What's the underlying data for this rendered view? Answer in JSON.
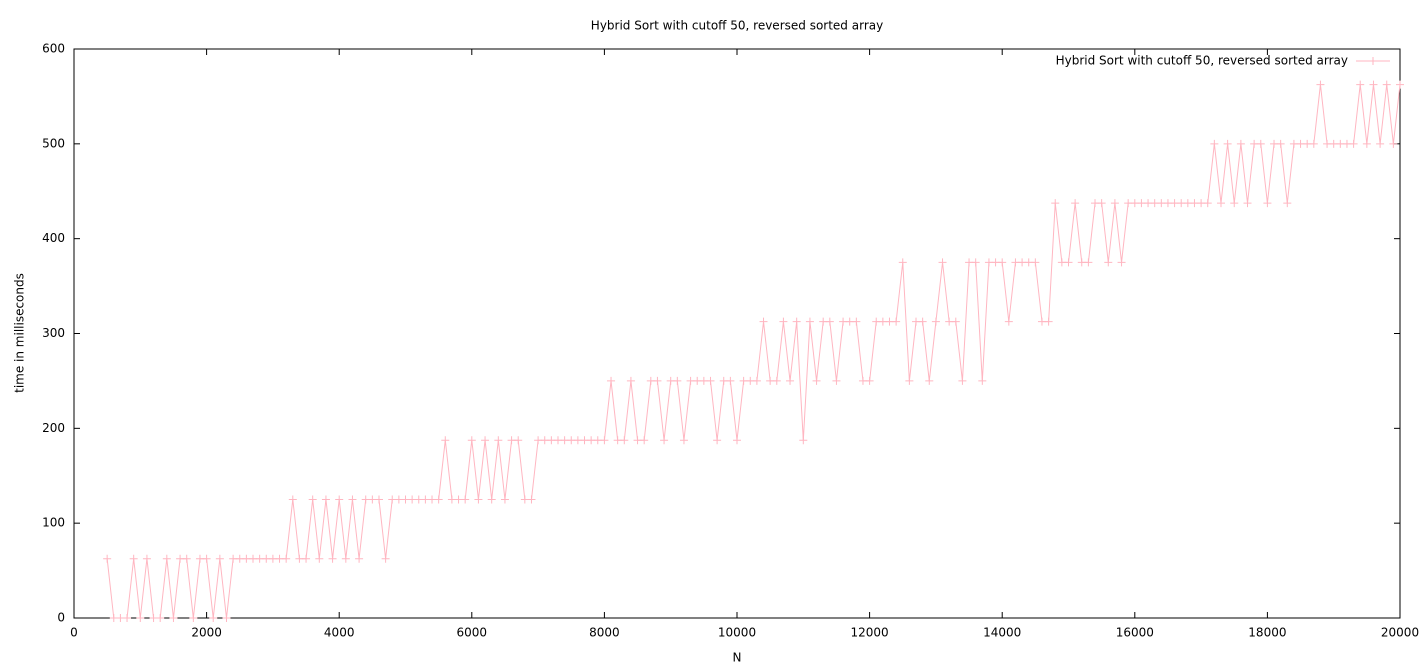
{
  "chart_data": {
    "type": "line",
    "title": "Hybrid Sort with cutoff 50, reversed sorted array",
    "x_label": "N",
    "y_label": "time in milliseconds",
    "xlim": [
      0,
      20000
    ],
    "xticks": [
      0,
      2000,
      4000,
      6000,
      8000,
      10000,
      12000,
      14000,
      16000,
      18000,
      20000
    ],
    "ylim": [
      0,
      600
    ],
    "yticks": [
      0,
      100,
      200,
      300,
      400,
      500,
      600
    ],
    "legend": "top-right",
    "markers": true,
    "x": [
      500,
      600,
      700,
      800,
      900,
      1000,
      1100,
      1200,
      1300,
      1400,
      1500,
      1600,
      1700,
      1800,
      1900,
      2000,
      2100,
      2200,
      2300,
      2400,
      2500,
      2600,
      2700,
      2800,
      2900,
      3000,
      3100,
      3200,
      3300,
      3400,
      3500,
      3600,
      3700,
      3800,
      3900,
      4000,
      4100,
      4200,
      4300,
      4400,
      4500,
      4600,
      4700,
      4800,
      4900,
      5000,
      5100,
      5200,
      5300,
      5400,
      5500,
      5600,
      5700,
      5800,
      5900,
      6000,
      6100,
      6200,
      6300,
      6400,
      6500,
      6600,
      6700,
      6800,
      6900,
      7000,
      7100,
      7200,
      7300,
      7400,
      7500,
      7600,
      7700,
      7800,
      7900,
      8000,
      8100,
      8200,
      8300,
      8400,
      8500,
      8600,
      8700,
      8800,
      8900,
      9000,
      9100,
      9200,
      9300,
      9400,
      9500,
      9600,
      9700,
      9800,
      9900,
      10000,
      10100,
      10200,
      10300,
      10400,
      10500,
      10600,
      10700,
      10800,
      10900,
      11000,
      11100,
      11200,
      11300,
      11400,
      11500,
      11600,
      11700,
      11800,
      11900,
      12000,
      12100,
      12200,
      12300,
      12400,
      12500,
      12600,
      12700,
      12800,
      12900,
      13000,
      13100,
      13200,
      13300,
      13400,
      13500,
      13600,
      13700,
      13800,
      13900,
      14000,
      14100,
      14200,
      14300,
      14400,
      14500,
      14600,
      14700,
      14800,
      14900,
      15000,
      15100,
      15200,
      15300,
      15400,
      15500,
      15600,
      15700,
      15800,
      15900,
      16000,
      16100,
      16200,
      16300,
      16400,
      16500,
      16600,
      16700,
      16800,
      16900,
      17000,
      17100,
      17200,
      17300,
      17400,
      17500,
      17600,
      17700,
      17800,
      17900,
      18000,
      18100,
      18200,
      18300,
      18400,
      18500,
      18600,
      18700,
      18800,
      18900,
      19000,
      19100,
      19200,
      19300,
      19400,
      19500,
      19600,
      19700,
      19800,
      19900,
      20000
    ],
    "series": [
      {
        "name": "Hybrid Sort with cutoff 50, reversed sorted array",
        "color": "#ffb6c1",
        "values": [
          62.5,
          0,
          0,
          0,
          62.5,
          0,
          62.5,
          0,
          0,
          62.5,
          0,
          62.5,
          62.5,
          0,
          62.5,
          62.5,
          0,
          62.5,
          0,
          62.5,
          62.5,
          62.5,
          62.5,
          62.5,
          62.5,
          62.5,
          62.5,
          62.5,
          125,
          62.5,
          62.5,
          125,
          62.5,
          125,
          62.5,
          125,
          62.5,
          125,
          62.5,
          125,
          125,
          125,
          62.5,
          125,
          125,
          125,
          125,
          125,
          125,
          125,
          125,
          187.5,
          125,
          125,
          125,
          187.5,
          125,
          187.5,
          125,
          187.5,
          125,
          187.5,
          187.5,
          125,
          125,
          187.5,
          187.5,
          187.5,
          187.5,
          187.5,
          187.5,
          187.5,
          187.5,
          187.5,
          187.5,
          187.5,
          250,
          187.5,
          187.5,
          250,
          187.5,
          187.5,
          250,
          250,
          187.5,
          250,
          250,
          187.5,
          250,
          250,
          250,
          250,
          187.5,
          250,
          250,
          187.5,
          250,
          250,
          250,
          312.5,
          250,
          250,
          312.5,
          250,
          312.5,
          187.5,
          312.5,
          250,
          312.5,
          312.5,
          250,
          312.5,
          312.5,
          312.5,
          250,
          250,
          312.5,
          312.5,
          312.5,
          312.5,
          375,
          250,
          312.5,
          312.5,
          250,
          312.5,
          375,
          312.5,
          312.5,
          250,
          375,
          375,
          250,
          375,
          375,
          375,
          312.5,
          375,
          375,
          375,
          375,
          312.5,
          312.5,
          437.5,
          375,
          375,
          437.5,
          375,
          375,
          437.5,
          437.5,
          375,
          437.5,
          375,
          437.5,
          437.5,
          437.5,
          437.5,
          437.5,
          437.5,
          437.5,
          437.5,
          437.5,
          437.5,
          437.5,
          437.5,
          437.5,
          500,
          437.5,
          500,
          437.5,
          500,
          437.5,
          500,
          500,
          437.5,
          500,
          500,
          437.5,
          500,
          500,
          500,
          500,
          562.5,
          500,
          500,
          500,
          500,
          500,
          562.5,
          500,
          562.5,
          500,
          562.5,
          500,
          562.5
        ]
      }
    ]
  }
}
